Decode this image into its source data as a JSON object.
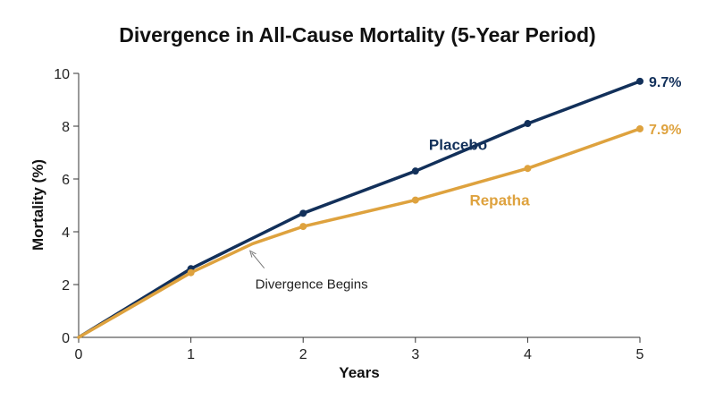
{
  "chart_data": {
    "type": "line",
    "title": "Divergence in All-Cause Mortality (5-Year Period)",
    "xlabel": "Years",
    "ylabel": "Mortality (%)",
    "xlim": [
      0,
      5
    ],
    "ylim": [
      0,
      10
    ],
    "x_ticks": [
      "0",
      "1",
      "2",
      "3",
      "4",
      "5"
    ],
    "y_ticks": [
      "0",
      "2",
      "4",
      "6",
      "8",
      "10"
    ],
    "grid": false,
    "series": [
      {
        "name": "Placebo",
        "color": "#12305a",
        "points": [
          [
            0,
            0
          ],
          [
            1,
            2.6
          ],
          [
            2,
            4.7
          ],
          [
            3,
            6.3
          ],
          [
            4,
            8.1
          ],
          [
            5,
            9.7
          ]
        ],
        "end_label": "9.7%"
      },
      {
        "name": "Repatha",
        "color": "#dea23e",
        "points": [
          [
            0,
            0
          ],
          [
            1,
            2.45
          ],
          [
            1.55,
            3.55
          ],
          [
            2,
            4.2
          ],
          [
            3,
            5.2
          ],
          [
            4,
            6.4
          ],
          [
            5,
            7.9
          ]
        ],
        "markers": [
          [
            1,
            2.45
          ],
          [
            2,
            4.2
          ],
          [
            3,
            5.2
          ],
          [
            4,
            6.4
          ],
          [
            5,
            7.9
          ]
        ],
        "end_label": "7.9%"
      }
    ],
    "annotations": [
      {
        "text": "Divergence Begins",
        "x": 1.55,
        "y": 3.3
      }
    ]
  }
}
